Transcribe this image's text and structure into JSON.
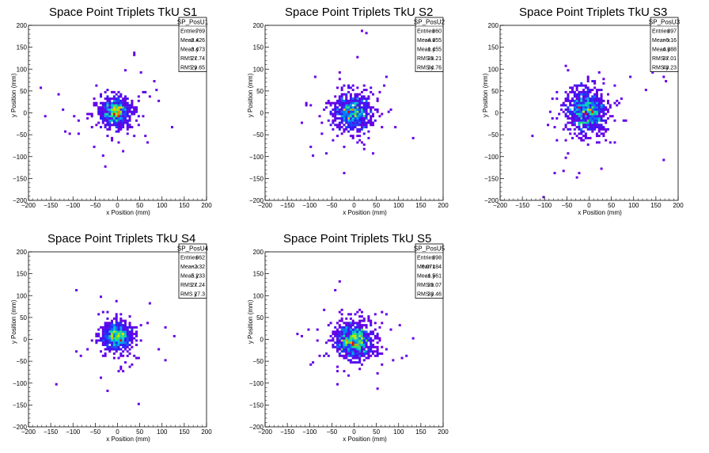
{
  "chart_data": [
    {
      "type": "heatmap",
      "title": "Space Point Triplets TkU S1",
      "xlabel": "x Position (mm)",
      "ylabel": "y Position (mm)",
      "xlim": [
        -200,
        200
      ],
      "ylim": [
        -200,
        200
      ],
      "xticks": [
        "−200",
        "−150",
        "−100",
        "−50",
        "0",
        "50",
        "100",
        "150",
        "200"
      ],
      "yticks": [
        "−200",
        "−150",
        "−100",
        "−50",
        "0",
        "50",
        "100",
        "150",
        "200"
      ],
      "stats": {
        "name": "SP_PosU1",
        "rows": [
          [
            "Entries",
            "769"
          ],
          [
            "Mean x",
            "−2.426"
          ],
          [
            "Mean y",
            "3.473"
          ],
          [
            "RMS x",
            "27.74"
          ],
          [
            "RMS y",
            "29.65"
          ]
        ]
      },
      "summary": {
        "entries": 769,
        "mean_x": -2.426,
        "mean_y": 3.473,
        "rms_x": 27.74,
        "rms_y": 29.65
      }
    },
    {
      "type": "heatmap",
      "title": "Space Point Triplets TkU S2",
      "xlabel": "x Position (mm)",
      "ylabel": "y Position (mm)",
      "xlim": [
        -200,
        200
      ],
      "ylim": [
        -200,
        200
      ],
      "xticks": [
        "−200",
        "−150",
        "−100",
        "−50",
        "0",
        "50",
        "100",
        "150",
        "200"
      ],
      "yticks": [
        "−200",
        "−150",
        "−100",
        "−50",
        "0",
        "50",
        "100",
        "150",
        "200"
      ],
      "stats": {
        "name": "SP_PosU2",
        "rows": [
          [
            "Entries",
            "860"
          ],
          [
            "Mean x",
            "−4.055"
          ],
          [
            "Mean y",
            "1.455"
          ],
          [
            "RMS x",
            "35.21"
          ],
          [
            "RMS y",
            "34.76"
          ]
        ]
      },
      "summary": {
        "entries": 860,
        "mean_x": -4.055,
        "mean_y": 1.455,
        "rms_x": 35.21,
        "rms_y": 34.76
      }
    },
    {
      "type": "heatmap",
      "title": "Space Point Triplets TkU S3",
      "xlabel": "x Position (mm)",
      "ylabel": "y Position (mm)",
      "xlim": [
        -200,
        200
      ],
      "ylim": [
        -200,
        200
      ],
      "xticks": [
        "−200",
        "−150",
        "−100",
        "−50",
        "0",
        "50",
        "100",
        "150",
        "200"
      ],
      "yticks": [
        "−200",
        "−150",
        "−100",
        "−50",
        "0",
        "50",
        "100",
        "150",
        "200"
      ],
      "stats": {
        "name": "SP_PosU3",
        "rows": [
          [
            "Entries",
            "897"
          ],
          [
            "Mean x",
            "−6.16"
          ],
          [
            "Mean y",
            "4.888"
          ],
          [
            "RMS x",
            "37.01"
          ],
          [
            "RMS y",
            "43.23"
          ]
        ]
      },
      "summary": {
        "entries": 897,
        "mean_x": -6.16,
        "mean_y": 4.888,
        "rms_x": 37.01,
        "rms_y": 43.23
      }
    },
    {
      "type": "heatmap",
      "title": "Space Point Triplets TkU S4",
      "xlabel": "x Position (mm)",
      "ylabel": "y Position (mm)",
      "xlim": [
        -200,
        200
      ],
      "ylim": [
        -200,
        200
      ],
      "xticks": [
        "−200",
        "−150",
        "−100",
        "−50",
        "0",
        "50",
        "100",
        "150",
        "200"
      ],
      "yticks": [
        "−200",
        "−150",
        "−100",
        "−50",
        "0",
        "50",
        "100",
        "150",
        "200"
      ],
      "stats": {
        "name": "SP_PosU4",
        "rows": [
          [
            "Entries",
            "862"
          ],
          [
            "Mean x",
            "−2.32"
          ],
          [
            "Mean y",
            "5.233"
          ],
          [
            "RMS x",
            "27.24"
          ],
          [
            "RMS y",
            "27.3"
          ]
        ]
      },
      "summary": {
        "entries": 862,
        "mean_x": -2.32,
        "mean_y": 5.233,
        "rms_x": 27.24,
        "rms_y": 27.3
      }
    },
    {
      "type": "heatmap",
      "title": "Space Point Triplets TkU S5",
      "xlabel": "x Position (mm)",
      "ylabel": "y Position (mm)",
      "xlim": [
        -200,
        200
      ],
      "ylim": [
        -200,
        200
      ],
      "xticks": [
        "−200",
        "−150",
        "−100",
        "−50",
        "0",
        "50",
        "100",
        "150",
        "200"
      ],
      "yticks": [
        "−200",
        "−150",
        "−100",
        "−50",
        "0",
        "50",
        "100",
        "150",
        "200"
      ],
      "stats": {
        "name": "SP_PosU5",
        "rows": [
          [
            "Entries",
            "898"
          ],
          [
            "Mean x",
            "0.07184"
          ],
          [
            "Mean y",
            "−1.561"
          ],
          [
            "RMS x",
            "35.07"
          ],
          [
            "RMS y",
            "33.46"
          ]
        ]
      },
      "summary": {
        "entries": 898,
        "mean_x": 0.07184,
        "mean_y": -1.561,
        "rms_x": 35.07,
        "rms_y": 33.46
      }
    }
  ]
}
